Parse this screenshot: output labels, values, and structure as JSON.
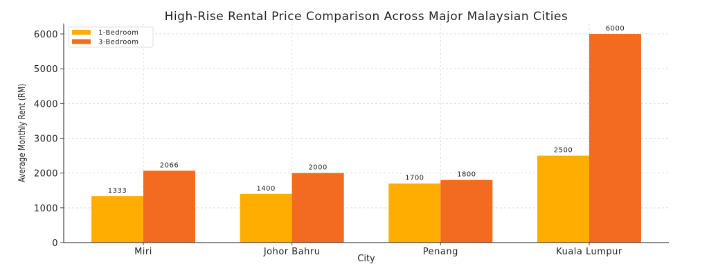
{
  "chart_data": {
    "type": "bar",
    "title": "High-Rise Rental Price Comparison Across Major Malaysian Cities",
    "xlabel": "City",
    "ylabel": "Average Monthly Rent (RM)",
    "categories": [
      "Miri",
      "Johor Bahru",
      "Penang",
      "Kuala Lumpur"
    ],
    "series": [
      {
        "name": "1-Bedroom",
        "color": "#FFAD00",
        "values": [
          1333,
          1400,
          1700,
          2500
        ]
      },
      {
        "name": "3-Bedroom",
        "color": "#F26B21",
        "values": [
          2066,
          2000,
          1800,
          6000
        ]
      }
    ],
    "ylim": [
      0,
      6300
    ],
    "yticks": [
      0,
      1000,
      2000,
      3000,
      4000,
      5000,
      6000
    ],
    "grid": true,
    "legend": "top-left"
  }
}
